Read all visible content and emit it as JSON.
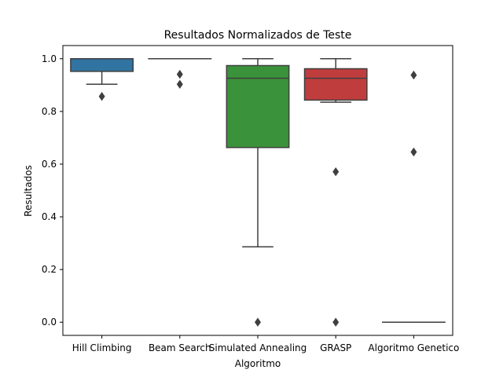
{
  "chart_data": {
    "type": "box",
    "title": "Resultados Normalizados de Teste",
    "xlabel": "Algoritmo",
    "ylabel": "Resultados",
    "ylim": [
      -0.05,
      1.05
    ],
    "yticks": [
      "0.0",
      "0.2",
      "0.4",
      "0.6",
      "0.8",
      "1.0"
    ],
    "categories": [
      "Hill Climbing",
      "Beam Search",
      "Simulated Annealing",
      "GRASP",
      "Algoritmo Genetico"
    ],
    "boxes": [
      {
        "name": "Hill Climbing",
        "color": "#3274a1",
        "q1": 0.952,
        "median": 1.0,
        "q3": 1.0,
        "whisker_low": 0.903,
        "whisker_high": 1.0,
        "outliers": [
          0.857
        ]
      },
      {
        "name": "Beam Search",
        "color": "#e1812c",
        "q1": 1.0,
        "median": 1.0,
        "q3": 1.0,
        "whisker_low": 1.0,
        "whisker_high": 1.0,
        "outliers": [
          0.941,
          0.903
        ]
      },
      {
        "name": "Simulated Annealing",
        "color": "#3a923a",
        "q1": 0.663,
        "median": 0.926,
        "q3": 0.974,
        "whisker_low": 0.286,
        "whisker_high": 1.0,
        "outliers": [
          0.0
        ]
      },
      {
        "name": "GRASP",
        "color": "#c03d3e",
        "q1": 0.843,
        "median": 0.926,
        "q3": 0.962,
        "whisker_low": 0.835,
        "whisker_high": 1.0,
        "outliers": [
          0.571,
          0.0
        ]
      },
      {
        "name": "Algoritmo Genetico",
        "color": "#9372b2",
        "q1": 0.0,
        "median": 0.0,
        "q3": 0.0,
        "whisker_low": 0.0,
        "whisker_high": 0.0,
        "outliers": [
          0.938,
          0.646
        ]
      }
    ]
  }
}
